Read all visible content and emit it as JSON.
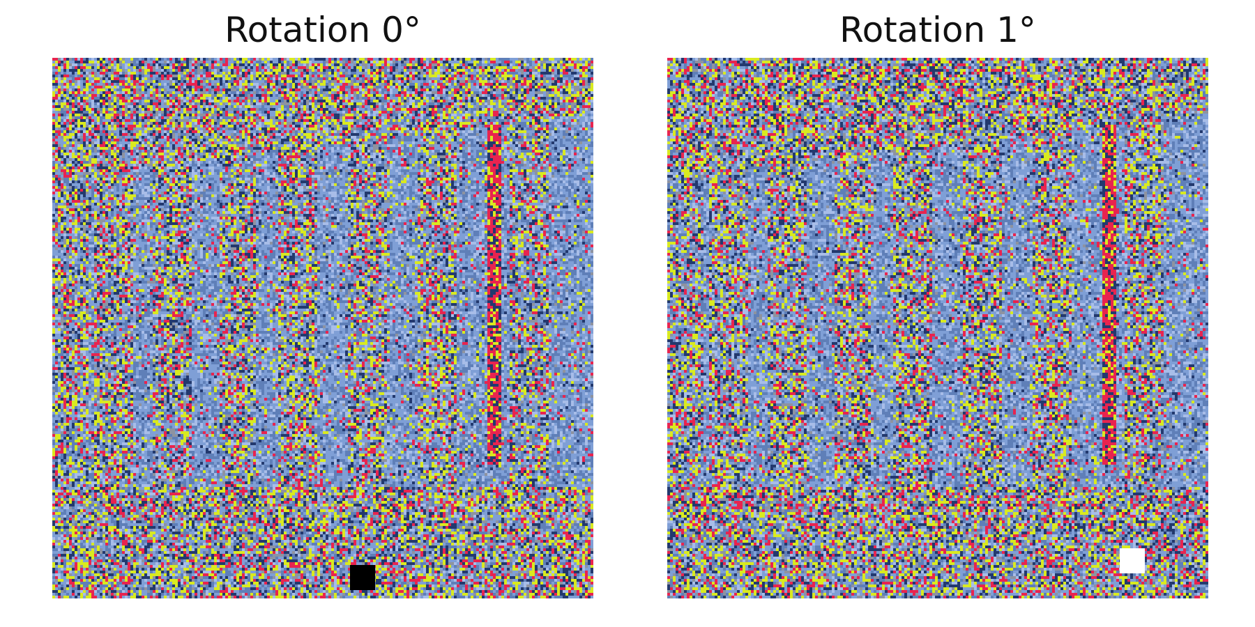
{
  "panels": [
    {
      "title": "Rotation 0°",
      "marker_color": "#000000"
    },
    {
      "title": "Rotation 1°",
      "marker_color": "#ffffff"
    }
  ],
  "palette": {
    "light_blue": "#7f9fd6",
    "mid_blue": "#5f7fb8",
    "dark_blue": "#23396e",
    "pale_blue": "#a8bde8",
    "red": "#e8244f",
    "yellow": "#d9ea20",
    "grey": "#8e93a0"
  }
}
